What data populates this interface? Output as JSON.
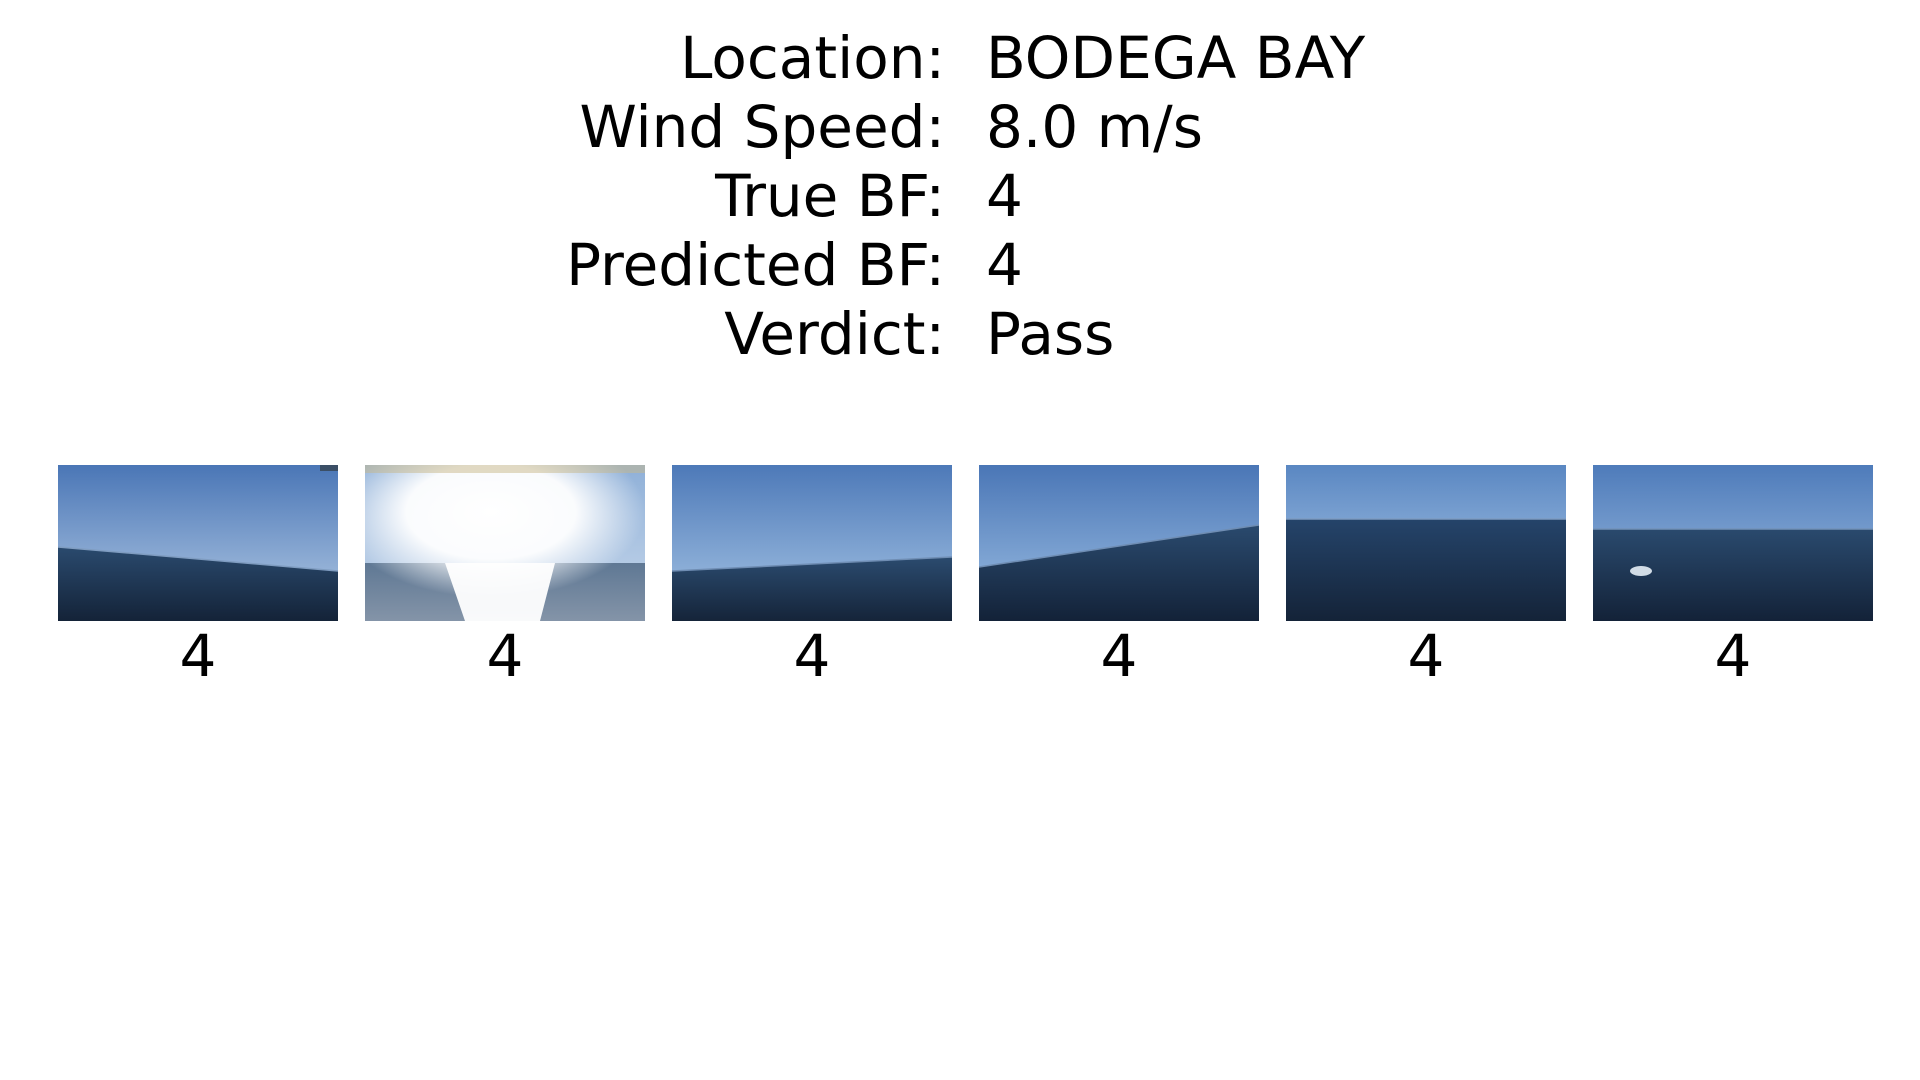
{
  "info": [
    {
      "label": "Location:",
      "value": "BODEGA BAY"
    },
    {
      "label": "Wind Speed:",
      "value": "8.0 m/s"
    },
    {
      "label": "True BF:",
      "value": "4"
    },
    {
      "label": "Predicted BF:",
      "value": "4"
    },
    {
      "label": "Verdict:",
      "value": "Pass"
    }
  ],
  "thumbnails": [
    {
      "label": "4"
    },
    {
      "label": "4"
    },
    {
      "label": "4"
    },
    {
      "label": "4"
    },
    {
      "label": "4"
    },
    {
      "label": "4"
    }
  ],
  "colors": {
    "sky_top": "#4d79b8",
    "sky_horizon": "#a9c7e6",
    "sea_top": "#2b4b6f",
    "sea_bottom": "#132238",
    "glare": "#ffffff"
  }
}
